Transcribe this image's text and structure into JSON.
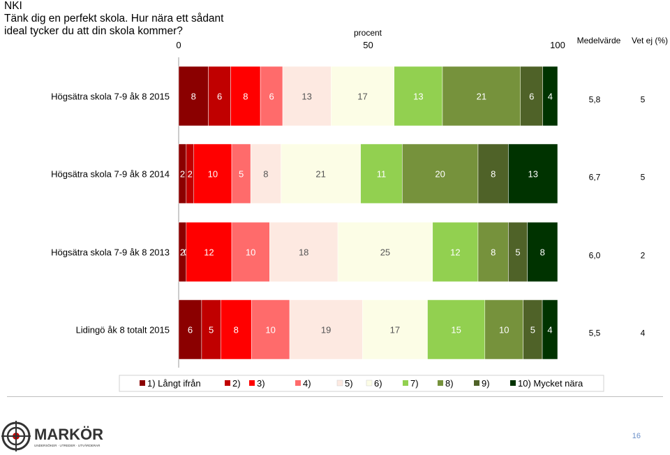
{
  "header": {
    "line1": "NKI",
    "line2": "Tänk dig en perfekt skola. Hur nära ett sådant",
    "line3": "ideal tycker du att din skola kommer?"
  },
  "chart_data": {
    "type": "bar",
    "orientation": "horizontal",
    "stacked": true,
    "axis_title": "procent",
    "xlim": [
      0,
      100
    ],
    "x_ticks": [
      "0",
      "50",
      "100"
    ],
    "extra_columns": [
      "Medelvärde",
      "Vet ej (%)"
    ],
    "categories": [
      "Högsätra skola 7-9 åk 8  2015",
      "Högsätra skola 7-9 åk 8  2014",
      "Högsätra skola 7-9 åk 8  2013",
      "Lidingö åk 8 totalt 2015"
    ],
    "series": [
      {
        "name": "1) Långt ifrån",
        "color": "#8b0000",
        "values": [
          8,
          2,
          2,
          6
        ]
      },
      {
        "name": "2)",
        "color": "#c00000",
        "values": [
          6,
          2,
          0,
          5
        ]
      },
      {
        "name": "3)",
        "color": "#ff0000",
        "values": [
          8,
          10,
          12,
          8
        ]
      },
      {
        "name": "4)",
        "color": "#ff6b6b",
        "values": [
          6,
          5,
          10,
          10
        ]
      },
      {
        "name": "5)",
        "color": "#fde9e1",
        "values": [
          13,
          8,
          18,
          19
        ]
      },
      {
        "name": "6)",
        "color": "#fcfde6",
        "values": [
          17,
          21,
          25,
          17
        ]
      },
      {
        "name": "7)",
        "color": "#92d050",
        "values": [
          13,
          11,
          12,
          15
        ]
      },
      {
        "name": "8)",
        "color": "#76923c",
        "values": [
          21,
          20,
          8,
          10
        ]
      },
      {
        "name": "9)",
        "color": "#4f6228",
        "values": [
          6,
          8,
          5,
          5
        ]
      },
      {
        "name": "10) Mycket nära",
        "color": "#003300",
        "values": [
          4,
          13,
          8,
          4
        ]
      }
    ],
    "labels": [
      [
        "8",
        "6",
        "8",
        "6",
        "13",
        "17",
        "13",
        "21",
        "6",
        "4"
      ],
      [
        "2",
        "2",
        "10",
        "5",
        "8",
        "21",
        "11",
        "20",
        "8",
        "13"
      ],
      [
        "2",
        "0",
        "12",
        "10",
        "18",
        "25",
        "12",
        "8",
        "5",
        "8"
      ],
      [
        "6",
        "5",
        "8",
        "10",
        "19",
        "17",
        "15",
        "10",
        "5",
        "4"
      ]
    ],
    "medelvarde": [
      "5,8",
      "6,7",
      "6,0",
      "5,5"
    ],
    "vet_ej": [
      "5",
      "5",
      "2",
      "4"
    ],
    "legend": "bottom"
  },
  "footer": {
    "brand": "MARKÖR",
    "tagline": "UNDERSÖKER · UTREDER · UTVÄRDERAR",
    "page_number": "16"
  }
}
